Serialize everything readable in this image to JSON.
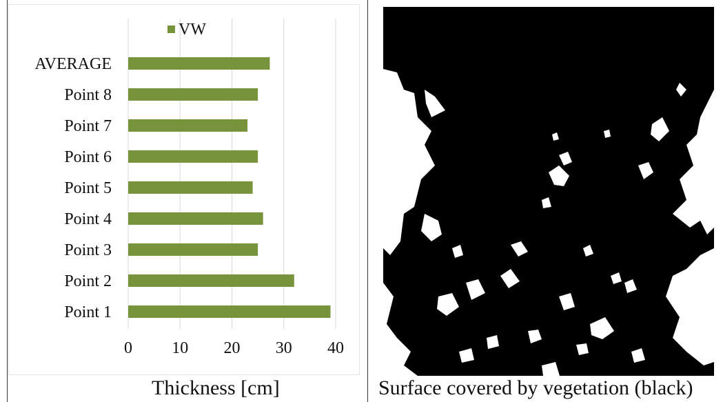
{
  "chart_data": {
    "type": "bar",
    "orientation": "horizontal",
    "categories": [
      "Point 1",
      "Point 2",
      "Point 3",
      "Point 4",
      "Point 5",
      "Point 6",
      "Point 7",
      "Point 8",
      "AVERAGE"
    ],
    "series": [
      {
        "name": "VW",
        "values": [
          39,
          32,
          25,
          26,
          24,
          25,
          23,
          25,
          27.3
        ],
        "color": "#77933c"
      }
    ],
    "xlim": [
      0,
      40
    ],
    "xticks": [
      0,
      10,
      20,
      30,
      40
    ],
    "xlabel": "Thickness [cm]",
    "grid": "vertical",
    "legend_position": "top"
  },
  "figure": {
    "left_caption": "Thickness [cm]",
    "right_caption": "Surface covered by vegetation (black)",
    "right_image": "binary vegetation mask (black on white)"
  },
  "colors": {
    "bar": "#77933c",
    "grid": "#d9d9d9",
    "mask_foreground": "#000000",
    "mask_background": "#ffffff"
  }
}
